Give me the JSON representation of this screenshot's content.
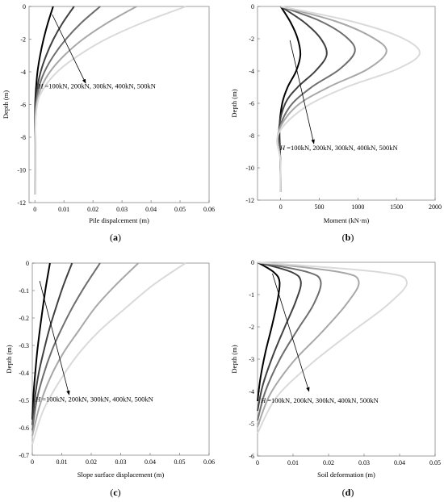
{
  "chart_data": [
    {
      "id": "a",
      "type": "line",
      "panel_label": "a",
      "xlabel": "Pile dispalcement (m)",
      "ylabel": "Depth (m)",
      "xlim": [
        -0.002,
        0.06
      ],
      "ylim": [
        -12,
        0
      ],
      "xticks": [
        0,
        0.01,
        0.02,
        0.03,
        0.04,
        0.05,
        0.06
      ],
      "xtick_labels": [
        "0",
        "0.01",
        "0.02",
        "0.03",
        "0.04",
        "0.05",
        "0.06"
      ],
      "yticks": [
        0,
        -2,
        -4,
        -6,
        -8,
        -10,
        -12
      ],
      "ytick_labels": [
        "0",
        "-2",
        "-4",
        "-6",
        "-8",
        "-10",
        "-12"
      ],
      "grid": false,
      "annotation": {
        "var": "H",
        "text": " =100kN, 200kN, 300kN, 400kN, 500kN"
      },
      "series": [
        {
          "color": "#000000",
          "x": [
            0.0063,
            0.0045,
            0.003,
            0.0018,
            0.0009,
            0.0004,
            0.0001,
            0.0,
            0.0
          ],
          "y": [
            0,
            -1,
            -2,
            -3,
            -4,
            -5,
            -6,
            -8,
            -11.5
          ]
        },
        {
          "color": "#404040",
          "x": [
            0.0135,
            0.0096,
            0.0064,
            0.0039,
            0.002,
            0.0008,
            0.0002,
            0.0,
            0.0
          ],
          "y": [
            0,
            -1,
            -2,
            -3,
            -4,
            -5,
            -6,
            -8,
            -11.5
          ]
        },
        {
          "color": "#6e6e6e",
          "x": [
            0.0225,
            0.016,
            0.0107,
            0.0065,
            0.0033,
            0.0013,
            0.0004,
            0.0,
            0.0
          ],
          "y": [
            0,
            -1,
            -2,
            -3,
            -4,
            -5,
            -6,
            -8,
            -11.5
          ]
        },
        {
          "color": "#a8a8a8",
          "x": [
            0.035,
            0.025,
            0.0166,
            0.0101,
            0.0052,
            0.0021,
            0.0006,
            0.0,
            0.0
          ],
          "y": [
            0,
            -1,
            -2,
            -3,
            -4,
            -5,
            -6,
            -8,
            -11.5
          ]
        },
        {
          "color": "#dadada",
          "x": [
            0.052,
            0.037,
            0.0245,
            0.015,
            0.0077,
            0.0031,
            0.0008,
            0.0,
            0.0
          ],
          "y": [
            0,
            -1,
            -2,
            -3,
            -4,
            -5,
            -6,
            -8,
            -11.5
          ]
        }
      ]
    },
    {
      "id": "b",
      "type": "line",
      "panel_label": "b",
      "xlabel": "Moment (kN·m)",
      "ylabel": "Depth (m)",
      "xlim": [
        -300,
        2000
      ],
      "ylim": [
        -12,
        0
      ],
      "xticks": [
        0,
        500,
        1000,
        1500,
        2000
      ],
      "xtick_labels": [
        "0",
        "500",
        "1000",
        "1500",
        "2000"
      ],
      "yticks": [
        0,
        -2,
        -4,
        -6,
        -8,
        -10,
        -12
      ],
      "ytick_labels": [
        "0",
        "-2",
        "-4",
        "-6",
        "-8",
        "-10",
        "-12"
      ],
      "grid": false,
      "annotation": {
        "var": "H",
        "text": " =100kN, 200kN, 300kN, 400kN, 500kN"
      },
      "series": [
        {
          "color": "#000000",
          "x": [
            0,
            130,
            220,
            255,
            200,
            90,
            20,
            -15,
            -5,
            0
          ],
          "y": [
            0,
            -1,
            -2,
            -3,
            -4,
            -5,
            -6,
            -7.5,
            -9.5,
            -11.5
          ]
        },
        {
          "color": "#404040",
          "x": [
            0,
            310,
            520,
            595,
            450,
            220,
            60,
            -20,
            -5,
            0
          ],
          "y": [
            0,
            -1,
            -2,
            -3,
            -4,
            -5,
            -6,
            -7.5,
            -9.5,
            -11.5
          ]
        },
        {
          "color": "#6e6e6e",
          "x": [
            0,
            510,
            850,
            960,
            760,
            400,
            120,
            -25,
            -5,
            0
          ],
          "y": [
            0,
            -0.9,
            -1.9,
            -2.8,
            -3.9,
            -5,
            -6.2,
            -7.8,
            -9.5,
            -11.5
          ]
        },
        {
          "color": "#a8a8a8",
          "x": [
            0,
            700,
            1180,
            1370,
            1120,
            620,
            200,
            -30,
            -5,
            0
          ],
          "y": [
            0,
            -0.9,
            -1.9,
            -2.8,
            -3.9,
            -5,
            -6.2,
            -7.8,
            -9.5,
            -11.5
          ]
        },
        {
          "color": "#dadada",
          "x": [
            0,
            900,
            1550,
            1800,
            1500,
            850,
            300,
            -30,
            -5,
            0
          ],
          "y": [
            0,
            -0.9,
            -1.9,
            -2.9,
            -3.9,
            -5,
            -6.3,
            -7.9,
            -9.5,
            -11.5
          ]
        }
      ]
    },
    {
      "id": "c",
      "type": "line",
      "panel_label": "c",
      "xlabel": "Slope surface displacement (m)",
      "ylabel": "Depth (m)",
      "xlim": [
        0,
        0.06
      ],
      "ylim": [
        -0.7,
        0
      ],
      "xticks": [
        0,
        0.01,
        0.02,
        0.03,
        0.04,
        0.05,
        0.06
      ],
      "xtick_labels": [
        "0",
        "0.01",
        "0.02",
        "0.03",
        "0.04",
        "0.05",
        "0.06"
      ],
      "yticks": [
        0,
        -0.1,
        -0.2,
        -0.3,
        -0.4,
        -0.5,
        -0.6,
        -0.7
      ],
      "ytick_labels": [
        "0",
        "-0.1",
        "-0.2",
        "-0.3",
        "-0.4",
        "-0.5",
        "-0.6",
        "-0.7"
      ],
      "grid": false,
      "annotation": {
        "var": "H",
        "text": " =100kN, 200kN, 300kN, 400kN, 500kN"
      },
      "series": [
        {
          "color": "#000000",
          "x": [
            0.006,
            0.0047,
            0.0036,
            0.0026,
            0.0017,
            0.001,
            0.0004,
            0.0
          ],
          "y": [
            0,
            -0.08,
            -0.16,
            -0.24,
            -0.32,
            -0.4,
            -0.48,
            -0.57
          ]
        },
        {
          "color": "#404040",
          "x": [
            0.0135,
            0.0106,
            0.0081,
            0.0058,
            0.0039,
            0.0022,
            0.0009,
            0.0
          ],
          "y": [
            0,
            -0.08,
            -0.16,
            -0.24,
            -0.32,
            -0.4,
            -0.49,
            -0.59
          ]
        },
        {
          "color": "#6e6e6e",
          "x": [
            0.023,
            0.0181,
            0.0137,
            0.0099,
            0.0066,
            0.0037,
            0.0015,
            0.0
          ],
          "y": [
            0,
            -0.08,
            -0.16,
            -0.24,
            -0.32,
            -0.41,
            -0.5,
            -0.61
          ]
        },
        {
          "color": "#a8a8a8",
          "x": [
            0.036,
            0.0283,
            0.0215,
            0.0155,
            0.0104,
            0.006,
            0.0025,
            0.0
          ],
          "y": [
            0,
            -0.08,
            -0.16,
            -0.25,
            -0.33,
            -0.42,
            -0.52,
            -0.63
          ]
        },
        {
          "color": "#dadada",
          "x": [
            0.052,
            0.041,
            0.031,
            0.0225,
            0.015,
            0.0087,
            0.0036,
            0.0
          ],
          "y": [
            0,
            -0.08,
            -0.17,
            -0.25,
            -0.34,
            -0.44,
            -0.54,
            -0.66
          ]
        }
      ]
    },
    {
      "id": "d",
      "type": "line",
      "panel_label": "d",
      "xlabel": "Soil deformation (m)",
      "ylabel": "Depth (m)",
      "xlim": [
        0,
        0.05
      ],
      "ylim": [
        -6,
        0
      ],
      "xticks": [
        0,
        0.01,
        0.02,
        0.03,
        0.04,
        0.05
      ],
      "xtick_labels": [
        "0",
        "0.01",
        "0.02",
        "0.03",
        "0.04",
        "0.05"
      ],
      "yticks": [
        0,
        -1,
        -2,
        -3,
        -4,
        -5,
        -6
      ],
      "ytick_labels": [
        "0",
        "-1",
        "-2",
        "-3",
        "-4",
        "-5",
        "-6"
      ],
      "grid": false,
      "annotation": {
        "var": "H",
        "text": " =100kN, 200kN, 300kN, 400kN, 500kN"
      },
      "series": [
        {
          "color": "#000000",
          "x": [
            0.0,
            0.0045,
            0.0062,
            0.0056,
            0.004,
            0.0022,
            0.0008,
            0.0
          ],
          "y": [
            0,
            -0.3,
            -0.6,
            -1.2,
            -2,
            -2.8,
            -3.6,
            -4.3
          ]
        },
        {
          "color": "#404040",
          "x": [
            0.0,
            0.0095,
            0.0122,
            0.0108,
            0.0077,
            0.0043,
            0.0015,
            0.0
          ],
          "y": [
            0,
            -0.3,
            -0.6,
            -1.2,
            -2,
            -2.9,
            -3.8,
            -4.6
          ]
        },
        {
          "color": "#6e6e6e",
          "x": [
            0.0,
            0.014,
            0.0178,
            0.0158,
            0.0112,
            0.0063,
            0.0022,
            0.0
          ],
          "y": [
            0,
            -0.3,
            -0.6,
            -1.3,
            -2.1,
            -3,
            -4,
            -4.9
          ]
        },
        {
          "color": "#a8a8a8",
          "x": [
            0.0,
            0.023,
            0.0285,
            0.025,
            0.0178,
            0.0099,
            0.0035,
            0.0
          ],
          "y": [
            0,
            -0.3,
            -0.6,
            -1.3,
            -2.2,
            -3.1,
            -4.1,
            -5.1
          ]
        },
        {
          "color": "#dadada",
          "x": [
            0.0,
            0.034,
            0.042,
            0.0368,
            0.026,
            0.0145,
            0.0052,
            0.0
          ],
          "y": [
            0,
            -0.3,
            -0.6,
            -1.3,
            -2.2,
            -3.2,
            -4.2,
            -5.3
          ]
        }
      ]
    }
  ]
}
